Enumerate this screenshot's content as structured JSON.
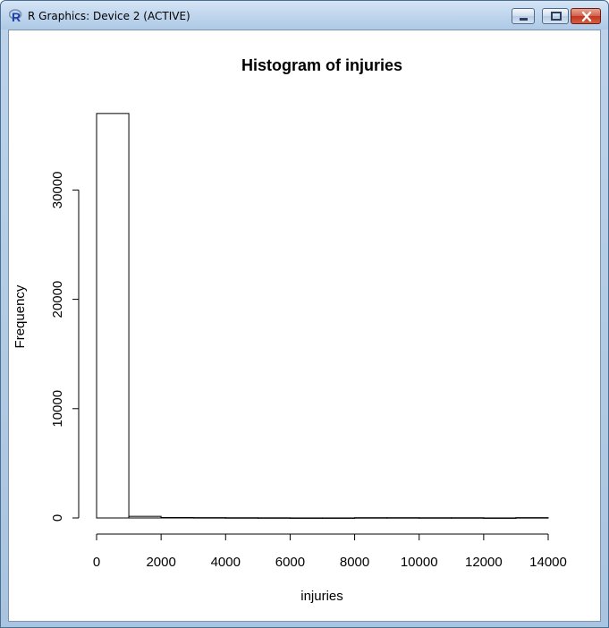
{
  "window": {
    "title": "R Graphics: Device 2 (ACTIVE)",
    "icon": "r-logo-icon",
    "controls": [
      "minimize-icon",
      "maximize-icon",
      "close-icon"
    ]
  },
  "chart_data": {
    "type": "bar",
    "title": "Histogram of injuries",
    "xlabel": "injuries",
    "ylabel": "Frequency",
    "bin_edges": [
      0,
      1000,
      2000,
      3000,
      4000,
      5000,
      6000,
      7000,
      8000,
      9000,
      10000,
      11000,
      12000,
      13000,
      14000
    ],
    "values": [
      37000,
      150,
      40,
      30,
      20,
      15,
      5,
      5,
      25,
      25,
      20,
      20,
      5,
      30
    ],
    "xlim": [
      0,
      14000
    ],
    "ylim": [
      0,
      37000
    ],
    "xticks": [
      "0",
      "2000",
      "4000",
      "6000",
      "8000",
      "10000",
      "12000",
      "14000"
    ],
    "yticks": [
      "0",
      "10000",
      "20000",
      "30000"
    ],
    "grid": false,
    "legend": "none"
  }
}
